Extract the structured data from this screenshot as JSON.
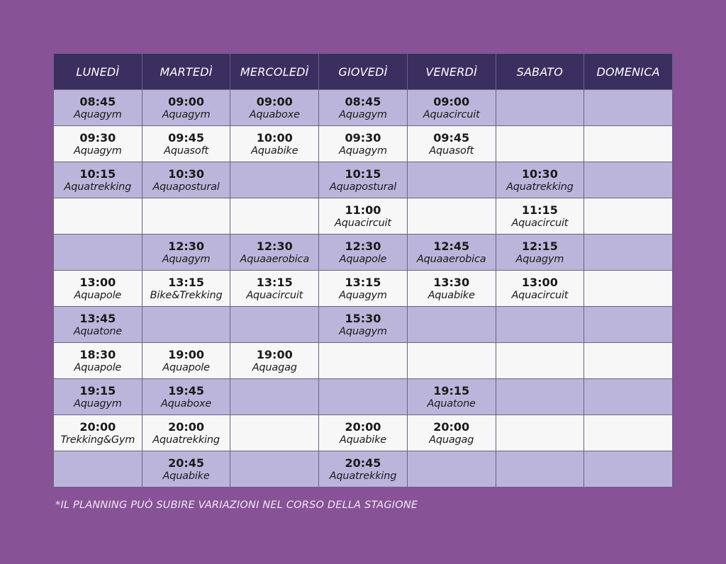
{
  "colors": {
    "background": "#875296",
    "header": "#3a2f5f",
    "row_alt": "#bcb5db",
    "row_plain": "#f7f7f7"
  },
  "days": [
    "LUNEDÌ",
    "MARTEDÌ",
    "MERCOLEDÌ",
    "GIOVEDÌ",
    "VENERDÌ",
    "SABATO",
    "DOMENICA"
  ],
  "rows": [
    [
      {
        "time": "08:45",
        "activity": "Aquagym"
      },
      {
        "time": "09:00",
        "activity": "Aquagym"
      },
      {
        "time": "09:00",
        "activity": "Aquaboxe"
      },
      {
        "time": "08:45",
        "activity": "Aquagym"
      },
      {
        "time": "09:00",
        "activity": "Aquacircuit"
      },
      null,
      null
    ],
    [
      {
        "time": "09:30",
        "activity": "Aquagym"
      },
      {
        "time": "09:45",
        "activity": "Aquasoft"
      },
      {
        "time": "10:00",
        "activity": "Aquabike"
      },
      {
        "time": "09:30",
        "activity": "Aquagym"
      },
      {
        "time": "09:45",
        "activity": "Aquasoft"
      },
      null,
      null
    ],
    [
      {
        "time": "10:15",
        "activity": "Aquatrekking"
      },
      {
        "time": "10:30",
        "activity": "Aquapostural"
      },
      null,
      {
        "time": "10:15",
        "activity": "Aquapostural"
      },
      null,
      {
        "time": "10:30",
        "activity": "Aquatrekking"
      },
      null
    ],
    [
      null,
      null,
      null,
      {
        "time": "11:00",
        "activity": "Aquacircuit"
      },
      null,
      {
        "time": "11:15",
        "activity": "Aquacircuit"
      },
      null
    ],
    [
      null,
      {
        "time": "12:30",
        "activity": "Aquagym"
      },
      {
        "time": "12:30",
        "activity": "Aquaaerobica"
      },
      {
        "time": "12:30",
        "activity": "Aquapole"
      },
      {
        "time": "12:45",
        "activity": "Aquaaerobica"
      },
      {
        "time": "12:15",
        "activity": "Aquagym"
      },
      null
    ],
    [
      {
        "time": "13:00",
        "activity": "Aquapole"
      },
      {
        "time": "13:15",
        "activity": "Bike&Trekking"
      },
      {
        "time": "13:15",
        "activity": "Aquacircuit"
      },
      {
        "time": "13:15",
        "activity": "Aquagym"
      },
      {
        "time": "13:30",
        "activity": "Aquabike"
      },
      {
        "time": "13:00",
        "activity": "Aquacircuit"
      },
      null
    ],
    [
      {
        "time": "13:45",
        "activity": "Aquatone"
      },
      null,
      null,
      {
        "time": "15:30",
        "activity": "Aquagym"
      },
      null,
      null,
      null
    ],
    [
      {
        "time": "18:30",
        "activity": "Aquapole"
      },
      {
        "time": "19:00",
        "activity": "Aquapole"
      },
      {
        "time": "19:00",
        "activity": "Aquagag"
      },
      null,
      null,
      null,
      null
    ],
    [
      {
        "time": "19:15",
        "activity": "Aquagym"
      },
      {
        "time": "19:45",
        "activity": "Aquaboxe"
      },
      null,
      null,
      {
        "time": "19:15",
        "activity": "Aquatone"
      },
      null,
      null
    ],
    [
      {
        "time": "20:00",
        "activity": "Trekking&Gym"
      },
      {
        "time": "20:00",
        "activity": "Aquatrekking"
      },
      null,
      {
        "time": "20:00",
        "activity": "Aquabike"
      },
      {
        "time": "20:00",
        "activity": "Aquagag"
      },
      null,
      null
    ],
    [
      null,
      {
        "time": "20:45",
        "activity": "Aquabike"
      },
      null,
      {
        "time": "20:45",
        "activity": "Aquatrekking"
      },
      null,
      null,
      null
    ]
  ],
  "footnote": "*IL PLANNING PUÒ SUBIRE VARIAZIONI NEL CORSO DELLA STAGIONE"
}
